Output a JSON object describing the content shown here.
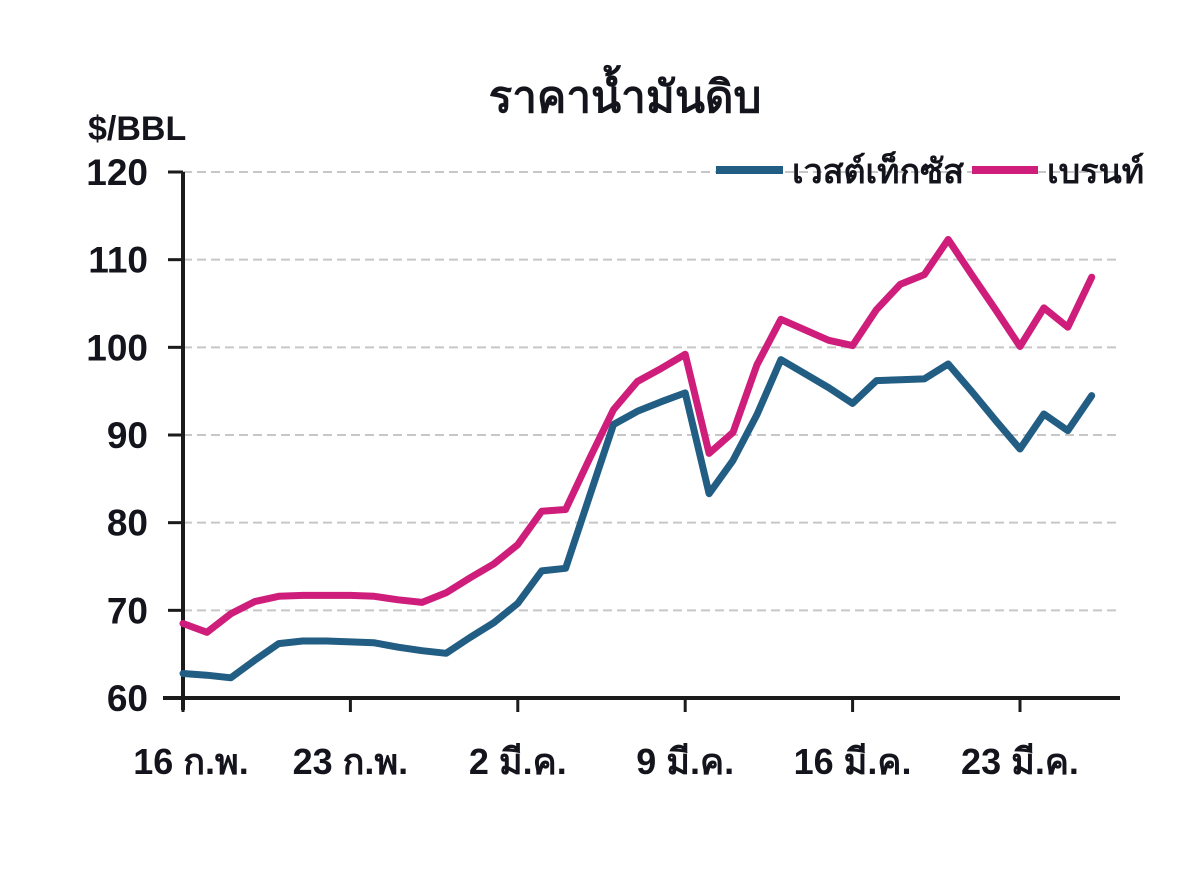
{
  "title": "ราคาน้ำมันดิบ",
  "y_axis_unit_label": "$/BBL",
  "legend": {
    "series1": "เวสต์เท็กซัส",
    "series2": "เบรนท์"
  },
  "colors": {
    "west_texas": "#225d84",
    "brent": "#cf1d7b",
    "grid": "#c7c7c7",
    "axis": "#1b1b1b",
    "text": "#14141c"
  },
  "chart_data": {
    "type": "line",
    "title": "ราคาน้ำมันดิบ",
    "ylabel": "$/BBL",
    "xlabel": "",
    "ylim": [
      60,
      120
    ],
    "yticks": [
      60,
      70,
      80,
      90,
      100,
      110,
      120
    ],
    "grid": "horizontal-dashed",
    "legend_position": "top-right",
    "n_points": 39,
    "x_tick_labels": [
      "16 ก.พ.",
      "23 ก.พ.",
      "2 มี.ค.",
      "9 มี.ค.",
      "16 มี.ค.",
      "23 มี.ค."
    ],
    "x_tick_indices": [
      0,
      7,
      14,
      21,
      28,
      35
    ],
    "series": [
      {
        "id": "west_texas",
        "name": "เวสต์เท็กซัส",
        "color": "#225d84",
        "values": [
          62.8,
          62.6,
          62.3,
          64.3,
          66.2,
          66.5,
          66.5,
          66.4,
          66.3,
          65.8,
          65.4,
          65.1,
          66.9,
          68.6,
          70.8,
          74.5,
          74.8,
          83.0,
          91.2,
          92.7,
          93.8,
          94.8,
          83.3,
          87.1,
          92.3,
          98.6,
          97.0,
          95.4,
          93.6,
          96.2,
          96.3,
          96.4,
          98.1,
          94.9,
          91.6,
          88.4,
          92.4,
          90.5,
          94.5
        ]
      },
      {
        "id": "brent",
        "name": "เบรนท์",
        "color": "#cf1d7b",
        "values": [
          68.5,
          67.5,
          69.6,
          71.0,
          71.6,
          71.7,
          71.7,
          71.7,
          71.6,
          71.2,
          70.9,
          72.0,
          73.7,
          75.3,
          77.5,
          81.3,
          81.5,
          87.3,
          92.9,
          96.1,
          97.6,
          99.2,
          87.9,
          90.3,
          98.0,
          103.2,
          102.0,
          100.8,
          100.2,
          104.3,
          107.2,
          108.3,
          112.3,
          108.2,
          104.2,
          100.1,
          104.5,
          102.3,
          108.0
        ]
      }
    ]
  }
}
